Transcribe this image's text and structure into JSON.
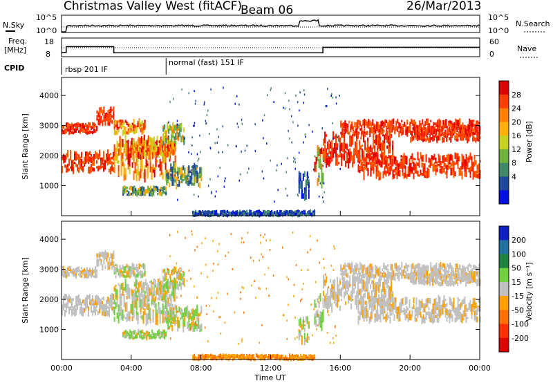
{
  "header": {
    "title": "Christmas Valley West (fitACF)",
    "beam": "Beam 06",
    "date": "26/Mar/2013"
  },
  "sky_noise": {
    "left_label": "N.Sky",
    "right_label": "N.Search",
    "left_ticks": [
      "10^5",
      "10^0"
    ],
    "right_ticks": [
      "10^5",
      "10^0"
    ]
  },
  "frequency": {
    "left_label_1": "Freq.",
    "left_label_2": "[MHz]",
    "left_ticks": [
      "18",
      "8"
    ],
    "right_label": "Nave",
    "right_ticks": [
      "60",
      "0"
    ],
    "freq_steps": [
      {
        "t": 0.0,
        "mhz": 10.8
      },
      {
        "t": 0.27,
        "mhz": 15.5
      },
      {
        "t": 3.0,
        "mhz": 10.6
      },
      {
        "t": 15.0,
        "mhz": 15.0
      },
      {
        "t": 24.0,
        "mhz": 15.0
      }
    ]
  },
  "cpid": {
    "label": "CPID",
    "segments": [
      {
        "text": "rbsp 201 IF",
        "start": 0.0
      },
      {
        "text": "normal (fast) 151 IF",
        "start": 6.0
      }
    ]
  },
  "chart_data": [
    {
      "type": "heatmap",
      "name": "power",
      "ylabel": "Slant Range [km]",
      "yticks": [
        "4000",
        "3000",
        "2000",
        "1000"
      ],
      "ylim": [
        0,
        4600
      ],
      "colorbar_label": "Power [dB]",
      "colorbar_ticks": [
        "28",
        "24",
        "20",
        "16",
        "12",
        "8",
        "4"
      ],
      "colorbar_colors": [
        "#e00000",
        "#ff4000",
        "#ff8000",
        "#ffb000",
        "#c8d020",
        "#70b040",
        "#408868",
        "#204898",
        "#0010e0"
      ]
    },
    {
      "type": "heatmap",
      "name": "velocity",
      "ylabel": "Slant Range [km]",
      "yticks": [
        "4000",
        "3000",
        "2000",
        "1000"
      ],
      "ylim": [
        0,
        4600
      ],
      "colorbar_label": "Velocity [m s⁻¹]",
      "colorbar_ticks": [
        "200",
        "100",
        "50",
        "15",
        "-15",
        "-50",
        "-100",
        "-200"
      ],
      "colorbar_colors": [
        "#1020c0",
        "#2070a0",
        "#208040",
        "#70d040",
        "#c0c0c0",
        "#ffa000",
        "#ff7000",
        "#ff3000",
        "#e00000"
      ]
    }
  ],
  "xaxis": {
    "label": "Time UT",
    "ticks": [
      "00:00",
      "04:00",
      "08:00",
      "12:00",
      "16:00",
      "20:00",
      "00:00"
    ]
  }
}
